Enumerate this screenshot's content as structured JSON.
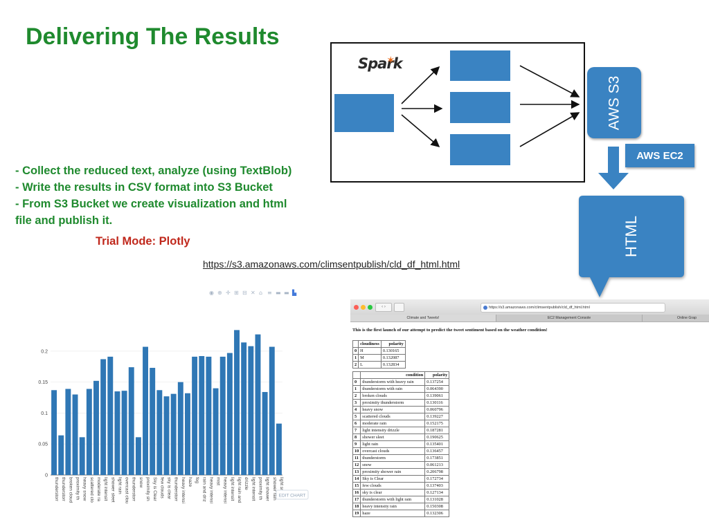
{
  "slide": {
    "title": "Delivering The Results",
    "bullets": [
      " - Collect the reduced text, analyze (using TextBlob)",
      " - Write the results in CSV format into S3 Bucket",
      " - From S3 Bucket we create visualization and html",
      "file and publish it."
    ],
    "trial_mode": "Trial Mode: Plotly",
    "url": "https://s3.amazonaws.com/climsentpublish/cld_df_html.html"
  },
  "diagram": {
    "spark_logo": "Spark",
    "s3_label": "AWS S3",
    "ec2_label": "AWS EC2",
    "html_label": "HTML",
    "colors": {
      "box": "#3a83c2",
      "border": "#111111"
    }
  },
  "chart": {
    "edit_button": "EDIT CHART",
    "toolbar_icons": [
      "camera-icon",
      "zoom-icon",
      "pan-icon",
      "zoom-in-icon",
      "zoom-out-icon",
      "autoscale-icon",
      "home-icon",
      "spike-lines-icon",
      "hover-closest-icon",
      "hover-compare-icon",
      "plotly-logo-icon"
    ]
  },
  "chart_data": {
    "type": "bar",
    "ylim": [
      0,
      0.24
    ],
    "yticks": [
      "0",
      "0.05",
      "0.1",
      "0.15",
      "0.2"
    ],
    "ytick_values": [
      0,
      0.05,
      0.1,
      0.15,
      0.2
    ],
    "bar_color": "#2f77b5",
    "categories": [
      "thunderstorr",
      "thunderstorr",
      "broken cloud",
      "proximity th",
      "heavy snow",
      "scattered clo",
      "moderate ra",
      "light intensit",
      "shower sleet",
      "light rain",
      "overcast clou",
      "thunderstorr",
      "snow",
      "proximity sh",
      "Sky is Clear",
      "few clouds",
      "sky is clear",
      "thunderstorr",
      "heavy intensi",
      "haze",
      "fog",
      "rain and driz",
      "heavy intensi",
      "mist",
      "heavy intensi",
      "light intensit",
      "light rain and",
      "drizzle",
      "light intensit",
      "proximity th",
      "light shower",
      "shower rain",
      "light snow"
    ],
    "values": [
      0.137,
      0.064,
      0.139,
      0.13,
      0.061,
      0.139,
      0.152,
      0.187,
      0.191,
      0.135,
      0.136,
      0.174,
      0.061,
      0.207,
      0.173,
      0.137,
      0.127,
      0.131,
      0.15,
      0.132,
      0.191,
      0.192,
      0.191,
      0.14,
      0.191,
      0.197,
      0.234,
      0.214,
      0.208,
      0.227,
      0.134,
      0.207,
      0.083
    ]
  },
  "browser": {
    "url": "https://s3.amazonaws.com/climsentpublish/cld_df_html.html",
    "tabs": [
      "Climate and Tweets!",
      "EC2 Management Console",
      "Online Grap"
    ],
    "heading": "This is the first launch of our attempt to predict the tweet sentiment based on the weather condition!",
    "table1": {
      "headers": [
        "",
        "cloudiness",
        "polarity"
      ],
      "rows": [
        [
          "0",
          "H",
          "0.130165"
        ],
        [
          "1",
          "M",
          "0.132087"
        ],
        [
          "2",
          "L",
          "0.132834"
        ]
      ]
    },
    "table2": {
      "headers": [
        "",
        "condition",
        "polarity"
      ],
      "rows": [
        [
          "0",
          "thunderstorm with heavy rain",
          "0.137254"
        ],
        [
          "1",
          "thunderstorm with rain",
          "0.064390"
        ],
        [
          "2",
          "broken clouds",
          "0.139061"
        ],
        [
          "3",
          "proximity thunderstorm",
          "0.130116"
        ],
        [
          "4",
          "heavy snow",
          "0.060796"
        ],
        [
          "5",
          "scattered clouds",
          "0.139227"
        ],
        [
          "6",
          "moderate rain",
          "0.152175"
        ],
        [
          "7",
          "light intensity drizzle",
          "0.187281"
        ],
        [
          "8",
          "shower sleet",
          "0.190625"
        ],
        [
          "9",
          "light rain",
          "0.135401"
        ],
        [
          "10",
          "overcast clouds",
          "0.136457"
        ],
        [
          "11",
          "thunderstorm",
          "0.173851"
        ],
        [
          "12",
          "snow",
          "0.061213"
        ],
        [
          "13",
          "proximity shower rain",
          "0.206798"
        ],
        [
          "14",
          "Sky is Clear",
          "0.172734"
        ],
        [
          "15",
          "few clouds",
          "0.137403"
        ],
        [
          "16",
          "sky is clear",
          "0.127134"
        ],
        [
          "17",
          "thunderstorm with light rain",
          "0.131028"
        ],
        [
          "18",
          "heavy intensity rain",
          "0.150308"
        ],
        [
          "19",
          "haze",
          "0.132306"
        ]
      ]
    }
  }
}
